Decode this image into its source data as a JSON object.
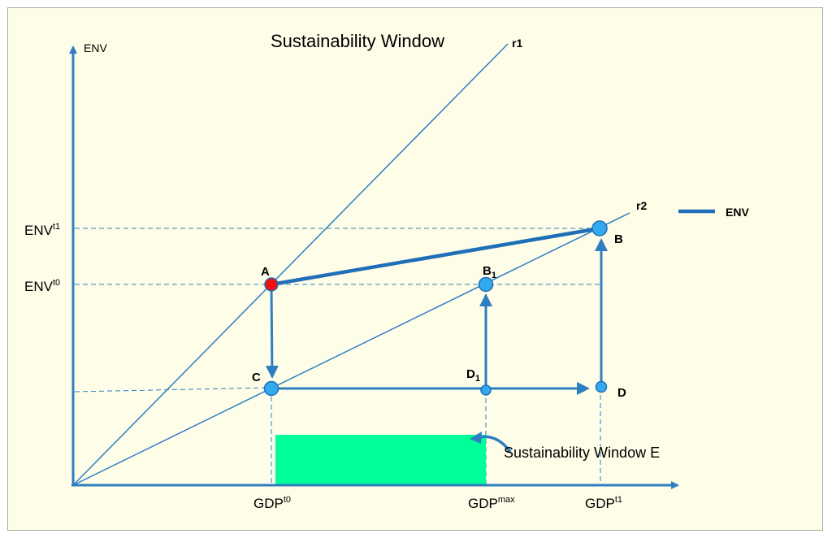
{
  "title": "Sustainability Window",
  "axes": {
    "y_label": "ENV"
  },
  "lines": {
    "r1": "r1",
    "r2": "r2"
  },
  "legend": {
    "label": "ENV"
  },
  "y_ticks": {
    "env_t1": {
      "base": "ENV",
      "sup": "t1"
    },
    "env_t0": {
      "base": "ENV",
      "sup": "t0"
    }
  },
  "x_ticks": {
    "gdp_t0": {
      "base": "GDP",
      "sup": "t0"
    },
    "gdp_max": {
      "base": "GDP",
      "sup": "max"
    },
    "gdp_t1": {
      "base": "GDP",
      "sup": "t1"
    }
  },
  "points": {
    "A": "A",
    "B": "B",
    "B1": {
      "base": "B",
      "sub": "1"
    },
    "C": "C",
    "D": "D",
    "D1": {
      "base": "D",
      "sub": "1"
    }
  },
  "window_label": "Sustainability Window E",
  "colors": {
    "frame_bg": "#fefde8",
    "axis": "#2e7ec2",
    "point_fill": "#33aaf0",
    "point_a_fill": "#ee1111",
    "window_fill": "#00ff99",
    "text": "#000000"
  }
}
